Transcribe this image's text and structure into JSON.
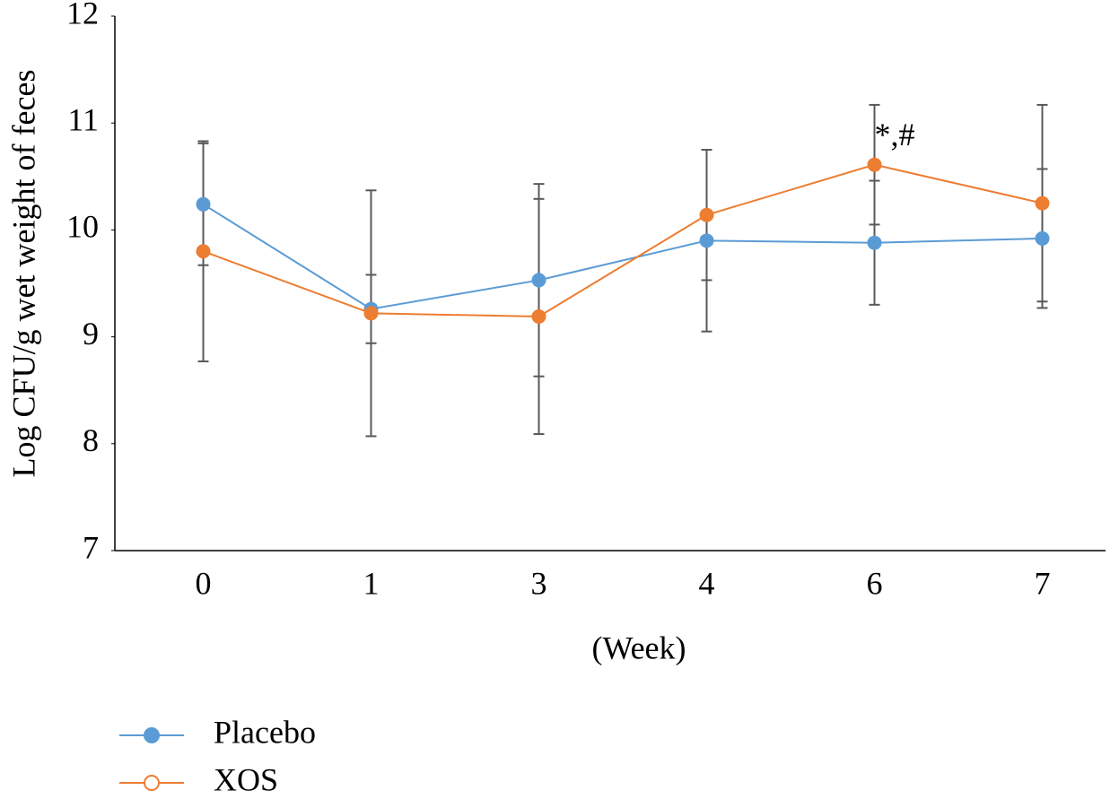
{
  "chart_data": {
    "type": "line",
    "y_label": "Log CFU/g wet weight of feces",
    "x_label": "(Week)",
    "categories": [
      "0",
      "1",
      "3",
      "4",
      "6",
      "7"
    ],
    "series": [
      {
        "name": "Placebo",
        "color": "#5b9bd5",
        "legend_marker": "filled",
        "values": [
          10.24,
          9.26,
          9.53,
          9.9,
          9.88,
          9.92
        ],
        "errors": [
          0.57,
          0.32,
          0.9,
          0.85,
          0.58,
          0.65
        ]
      },
      {
        "name": "XOS",
        "color": "#ed7d31",
        "legend_marker": "hollow",
        "values": [
          9.8,
          9.22,
          9.19,
          10.14,
          10.61,
          10.25
        ],
        "errors": [
          1.03,
          1.15,
          1.1,
          0.61,
          0.56,
          0.92
        ]
      }
    ],
    "error_color": "#595959",
    "annotations": [
      {
        "text": "*,#",
        "series": 1,
        "index": 4
      }
    ],
    "ylim": [
      7,
      12
    ],
    "yticks": [
      7,
      8,
      9,
      10,
      11,
      12
    ],
    "grid": false
  }
}
